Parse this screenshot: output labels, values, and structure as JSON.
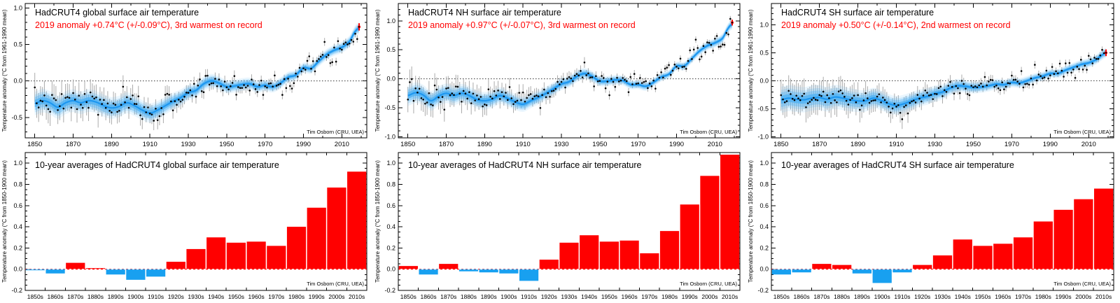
{
  "credit": "Tim Osborn (CRU, UEA)",
  "colors": {
    "accent_red": "#ff0000",
    "bar_negative_blue": "#18a0f0",
    "smoothed_line_blue": "#1e97f0",
    "band_blue": "#55b4f5",
    "errorbar_gray": "#aaaaaa",
    "dot_black": "#000000",
    "zero_line_black": "#333333"
  },
  "chart_data": [
    {
      "type": "line",
      "title": "HadCRUT4 global surface air temperature",
      "subtitle": "2019 anomaly +0.74°C (+/-0.09°C), 3rd warmest on record",
      "ylabel": "Temperature anomaly (°C from 1961-1990 mean)",
      "xlim": [
        1845,
        2023
      ],
      "ylim": [
        -0.78,
        1.06
      ],
      "x_major_ticks": [
        1850,
        1870,
        1890,
        1910,
        1930,
        1950,
        1970,
        1990,
        2010
      ],
      "y_major_ticks": [
        1.0,
        0.5,
        0.0,
        -0.5
      ],
      "zero_line": 0.0,
      "years_span": [
        1850,
        2019
      ],
      "smoothed": [
        [
          1850,
          -0.31
        ],
        [
          1854,
          -0.27
        ],
        [
          1858,
          -0.3
        ],
        [
          1862,
          -0.36
        ],
        [
          1866,
          -0.3
        ],
        [
          1870,
          -0.27
        ],
        [
          1874,
          -0.3
        ],
        [
          1878,
          -0.27
        ],
        [
          1882,
          -0.29
        ],
        [
          1886,
          -0.34
        ],
        [
          1890,
          -0.37
        ],
        [
          1894,
          -0.35
        ],
        [
          1898,
          -0.3
        ],
        [
          1902,
          -0.34
        ],
        [
          1906,
          -0.4
        ],
        [
          1910,
          -0.44
        ],
        [
          1914,
          -0.4
        ],
        [
          1918,
          -0.34
        ],
        [
          1922,
          -0.28
        ],
        [
          1926,
          -0.23
        ],
        [
          1930,
          -0.16
        ],
        [
          1934,
          -0.13
        ],
        [
          1938,
          -0.04
        ],
        [
          1942,
          0.0
        ],
        [
          1946,
          -0.03
        ],
        [
          1950,
          -0.08
        ],
        [
          1954,
          -0.07
        ],
        [
          1958,
          -0.05
        ],
        [
          1962,
          -0.04
        ],
        [
          1966,
          -0.08
        ],
        [
          1970,
          -0.06
        ],
        [
          1974,
          -0.08
        ],
        [
          1978,
          -0.03
        ],
        [
          1982,
          0.05
        ],
        [
          1986,
          0.08
        ],
        [
          1990,
          0.18
        ],
        [
          1994,
          0.17
        ],
        [
          1998,
          0.27
        ],
        [
          2002,
          0.36
        ],
        [
          2006,
          0.42
        ],
        [
          2010,
          0.46
        ],
        [
          2014,
          0.54
        ],
        [
          2017,
          0.68
        ],
        [
          2019,
          0.72
        ]
      ],
      "band_halfwidth": [
        [
          1850,
          0.09
        ],
        [
          1880,
          0.085
        ],
        [
          1900,
          0.08
        ],
        [
          1930,
          0.06
        ],
        [
          1950,
          0.05
        ],
        [
          1970,
          0.045
        ],
        [
          1990,
          0.04
        ],
        [
          2019,
          0.045
        ]
      ],
      "errorbar_halflength": [
        [
          1850,
          0.2
        ],
        [
          1880,
          0.18
        ],
        [
          1900,
          0.15
        ],
        [
          1930,
          0.1
        ],
        [
          1950,
          0.08
        ],
        [
          1980,
          0.06
        ],
        [
          2019,
          0.05
        ]
      ],
      "scatter_sd": 0.08,
      "noise_seed": 7,
      "final_point": {
        "year": 2019,
        "value": 0.74
      }
    },
    {
      "type": "line",
      "title": "HadCRUT4 NH surface air temperature",
      "subtitle": "2019 anomaly +0.97°C (+/-0.07°C), 3rd warmest on record",
      "ylabel": "Temperature anomaly (°C from 1961-1990 mean)",
      "xlim": [
        1845,
        2023
      ],
      "ylim": [
        -1.02,
        1.3
      ],
      "x_major_ticks": [
        1850,
        1870,
        1890,
        1910,
        1930,
        1950,
        1970,
        1990,
        2010
      ],
      "y_major_ticks": [
        1.0,
        0.5,
        0.0,
        -0.5,
        -1.0
      ],
      "zero_line": 0.0,
      "years_span": [
        1850,
        2019
      ],
      "smoothed": [
        [
          1850,
          -0.29
        ],
        [
          1854,
          -0.24
        ],
        [
          1858,
          -0.28
        ],
        [
          1862,
          -0.38
        ],
        [
          1866,
          -0.3
        ],
        [
          1870,
          -0.25
        ],
        [
          1874,
          -0.29
        ],
        [
          1878,
          -0.25
        ],
        [
          1882,
          -0.29
        ],
        [
          1886,
          -0.36
        ],
        [
          1890,
          -0.38
        ],
        [
          1894,
          -0.35
        ],
        [
          1898,
          -0.29
        ],
        [
          1902,
          -0.34
        ],
        [
          1906,
          -0.4
        ],
        [
          1910,
          -0.44
        ],
        [
          1914,
          -0.38
        ],
        [
          1918,
          -0.32
        ],
        [
          1922,
          -0.25
        ],
        [
          1926,
          -0.17
        ],
        [
          1930,
          -0.09
        ],
        [
          1934,
          -0.05
        ],
        [
          1938,
          0.04
        ],
        [
          1942,
          0.09
        ],
        [
          1946,
          0.04
        ],
        [
          1950,
          -0.04
        ],
        [
          1954,
          -0.04
        ],
        [
          1958,
          -0.02
        ],
        [
          1962,
          -0.03
        ],
        [
          1966,
          -0.1
        ],
        [
          1970,
          -0.1
        ],
        [
          1974,
          -0.13
        ],
        [
          1978,
          -0.06
        ],
        [
          1982,
          0.03
        ],
        [
          1986,
          0.08
        ],
        [
          1990,
          0.22
        ],
        [
          1994,
          0.22
        ],
        [
          1998,
          0.35
        ],
        [
          2002,
          0.48
        ],
        [
          2006,
          0.57
        ],
        [
          2010,
          0.62
        ],
        [
          2014,
          0.7
        ],
        [
          2017,
          0.88
        ],
        [
          2019,
          0.94
        ]
      ],
      "band_halfwidth": [
        [
          1850,
          0.1
        ],
        [
          1880,
          0.09
        ],
        [
          1900,
          0.08
        ],
        [
          1930,
          0.06
        ],
        [
          1950,
          0.05
        ],
        [
          1970,
          0.045
        ],
        [
          1990,
          0.04
        ],
        [
          2019,
          0.05
        ]
      ],
      "errorbar_halflength": [
        [
          1850,
          0.22
        ],
        [
          1880,
          0.2
        ],
        [
          1900,
          0.16
        ],
        [
          1930,
          0.11
        ],
        [
          1950,
          0.08
        ],
        [
          1980,
          0.06
        ],
        [
          2019,
          0.05
        ]
      ],
      "scatter_sd": 0.1,
      "noise_seed": 13,
      "final_point": {
        "year": 2019,
        "value": 0.97
      }
    },
    {
      "type": "line",
      "title": "HadCRUT4 SH surface air temperature",
      "subtitle": "2019 anomaly +0.50°C (+/-0.14°C), 2nd warmest on record",
      "ylabel": "Temperature anomaly (°C from 1961-1990 mean)",
      "xlim": [
        1845,
        2023
      ],
      "ylim": [
        -1.02,
        1.38
      ],
      "x_major_ticks": [
        1850,
        1870,
        1890,
        1910,
        1930,
        1950,
        1970,
        1990,
        2010
      ],
      "y_major_ticks": [
        1.0,
        0.5,
        0.0,
        -0.5,
        -1.0
      ],
      "zero_line": 0.0,
      "years_span": [
        1850,
        2019
      ],
      "smoothed": [
        [
          1850,
          -0.34
        ],
        [
          1854,
          -0.31
        ],
        [
          1858,
          -0.33
        ],
        [
          1862,
          -0.34
        ],
        [
          1866,
          -0.31
        ],
        [
          1870,
          -0.3
        ],
        [
          1874,
          -0.33
        ],
        [
          1878,
          -0.29
        ],
        [
          1882,
          -0.31
        ],
        [
          1886,
          -0.34
        ],
        [
          1890,
          -0.36
        ],
        [
          1894,
          -0.36
        ],
        [
          1898,
          -0.31
        ],
        [
          1902,
          -0.35
        ],
        [
          1906,
          -0.41
        ],
        [
          1910,
          -0.44
        ],
        [
          1914,
          -0.41
        ],
        [
          1918,
          -0.36
        ],
        [
          1922,
          -0.31
        ],
        [
          1926,
          -0.28
        ],
        [
          1930,
          -0.23
        ],
        [
          1934,
          -0.2
        ],
        [
          1938,
          -0.13
        ],
        [
          1942,
          -0.09
        ],
        [
          1946,
          -0.1
        ],
        [
          1950,
          -0.12
        ],
        [
          1954,
          -0.11
        ],
        [
          1958,
          -0.09
        ],
        [
          1962,
          -0.06
        ],
        [
          1966,
          -0.07
        ],
        [
          1970,
          -0.03
        ],
        [
          1974,
          -0.04
        ],
        [
          1978,
          0.0
        ],
        [
          1982,
          0.05
        ],
        [
          1986,
          0.08
        ],
        [
          1990,
          0.13
        ],
        [
          1994,
          0.13
        ],
        [
          1998,
          0.19
        ],
        [
          2002,
          0.24
        ],
        [
          2006,
          0.29
        ],
        [
          2010,
          0.32
        ],
        [
          2014,
          0.38
        ],
        [
          2017,
          0.46
        ],
        [
          2019,
          0.5
        ]
      ],
      "band_halfwidth": [
        [
          1850,
          0.13
        ],
        [
          1880,
          0.12
        ],
        [
          1900,
          0.1
        ],
        [
          1930,
          0.08
        ],
        [
          1950,
          0.06
        ],
        [
          1970,
          0.05
        ],
        [
          1990,
          0.045
        ],
        [
          2019,
          0.05
        ]
      ],
      "errorbar_halflength": [
        [
          1850,
          0.28
        ],
        [
          1880,
          0.26
        ],
        [
          1900,
          0.2
        ],
        [
          1930,
          0.14
        ],
        [
          1950,
          0.1
        ],
        [
          1980,
          0.07
        ],
        [
          2019,
          0.06
        ]
      ],
      "scatter_sd": 0.08,
      "noise_seed": 29,
      "final_point": {
        "year": 2019,
        "value": 0.5
      }
    },
    {
      "type": "bar",
      "title": "10-year averages of HadCRUT4 global surface air temperature",
      "ylabel": "Temperature anomaly (°C from 1850-1900 mean)",
      "categories": [
        "1850s",
        "1860s",
        "1870s",
        "1880s",
        "1890s",
        "1900s",
        "1910s",
        "1920s",
        "1930s",
        "1940s",
        "1950s",
        "1960s",
        "1970s",
        "1980s",
        "1990s",
        "2000s",
        "2010s"
      ],
      "values": [
        -0.01,
        -0.04,
        0.06,
        0.01,
        -0.05,
        -0.1,
        -0.07,
        0.07,
        0.19,
        0.3,
        0.25,
        0.26,
        0.22,
        0.4,
        0.58,
        0.77,
        0.92
      ],
      "ylim": [
        -0.2,
        1.1
      ],
      "y_major_ticks": [
        1.0,
        0.8,
        0.6,
        0.4,
        0.2,
        0.0,
        -0.2
      ],
      "zero_line": 0.0
    },
    {
      "type": "bar",
      "title": "10-year averages of HadCRUT4 NH surface air temperature",
      "ylabel": "Temperature anomaly (°C from 1850-1900 mean)",
      "categories": [
        "1850s",
        "1860s",
        "1870s",
        "1880s",
        "1890s",
        "1900s",
        "1910s",
        "1920s",
        "1930s",
        "1940s",
        "1950s",
        "1960s",
        "1970s",
        "1980s",
        "1990s",
        "2000s",
        "2010s"
      ],
      "values": [
        0.03,
        -0.05,
        0.05,
        -0.02,
        -0.03,
        -0.04,
        -0.11,
        0.09,
        0.25,
        0.32,
        0.26,
        0.27,
        0.15,
        0.36,
        0.61,
        0.88,
        1.08
      ],
      "ylim": [
        -0.2,
        1.1
      ],
      "y_major_ticks": [
        1.0,
        0.8,
        0.6,
        0.4,
        0.2,
        0.0,
        -0.2
      ],
      "zero_line": 0.0
    },
    {
      "type": "bar",
      "title": "10-year averages of HadCRUT4 SH surface air temperature",
      "ylabel": "Temperature anomaly (°C from 1850-1900 mean)",
      "categories": [
        "1850s",
        "1860s",
        "1870s",
        "1880s",
        "1890s",
        "1900s",
        "1910s",
        "1920s",
        "1930s",
        "1940s",
        "1950s",
        "1960s",
        "1970s",
        "1980s",
        "1990s",
        "2000s",
        "2010s"
      ],
      "values": [
        -0.05,
        -0.03,
        0.05,
        0.04,
        -0.04,
        -0.13,
        -0.03,
        0.04,
        0.13,
        0.28,
        0.22,
        0.24,
        0.3,
        0.45,
        0.56,
        0.66,
        0.76
      ],
      "ylim": [
        -0.2,
        1.1
      ],
      "y_major_ticks": [
        1.0,
        0.8,
        0.6,
        0.4,
        0.2,
        0.0,
        -0.2
      ],
      "zero_line": 0.0
    }
  ]
}
